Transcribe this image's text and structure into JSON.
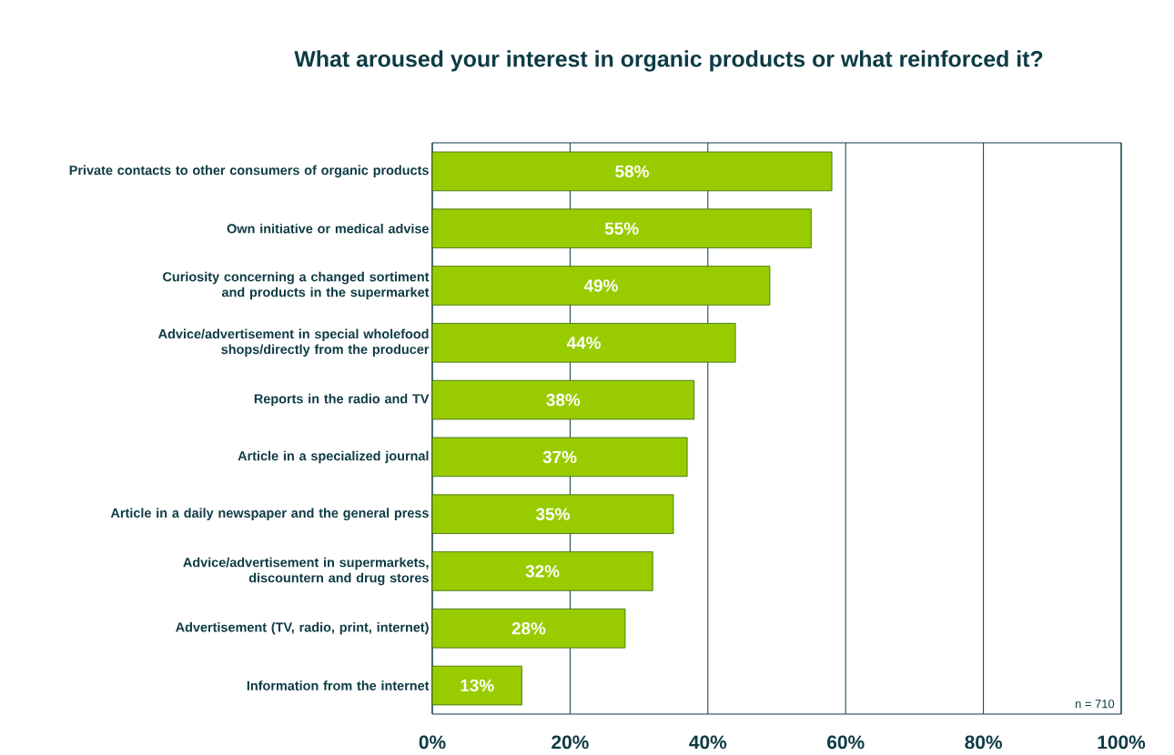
{
  "chart_data": {
    "type": "bar",
    "orientation": "horizontal",
    "title": "What aroused your interest in organic products or what reinforced it?",
    "categories": [
      "Private contacts to other consumers of organic products",
      "Own initiative or medical advise",
      "Curiosity concerning a changed sortiment and products in the supermarket",
      "Advice/advertisement in special wholefood shops/directly from the producer",
      "Reports in the radio and TV",
      "Article in a specialized journal",
      "Article in a daily newspaper and the general press",
      "Advice/advertisement in supermarkets, discountern and drug stores",
      "Advertisement (TV, radio, print, internet)",
      "Information from the internet"
    ],
    "values": [
      58,
      55,
      49,
      44,
      38,
      37,
      35,
      32,
      28,
      13
    ],
    "value_labels": [
      "58%",
      "55%",
      "49%",
      "44%",
      "38%",
      "37%",
      "35%",
      "32%",
      "28%",
      "13%"
    ],
    "color": "#99cc00",
    "xlim": [
      0,
      100
    ],
    "xticks": [
      {
        "value": 0,
        "label": "0%"
      },
      {
        "value": 20,
        "label": "20%"
      },
      {
        "value": 40,
        "label": "40%"
      },
      {
        "value": 60,
        "label": "60%"
      },
      {
        "value": 80,
        "label": "80%"
      },
      {
        "value": 100,
        "label": "100%"
      }
    ],
    "grid": "x",
    "annotations": [
      "n = 710"
    ]
  }
}
